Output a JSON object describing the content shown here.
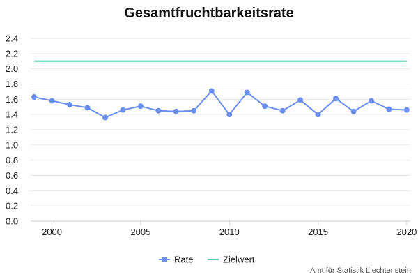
{
  "credit": "Amt für Statistik Liechtenstein",
  "chart_data": {
    "type": "line",
    "title": "Gesamtfruchtbarkeitsrate",
    "xlabel": "",
    "ylabel": "",
    "x": [
      1999,
      2000,
      2001,
      2002,
      2003,
      2004,
      2005,
      2006,
      2007,
      2008,
      2009,
      2010,
      2011,
      2012,
      2013,
      2014,
      2015,
      2016,
      2017,
      2018,
      2019,
      2020
    ],
    "series": [
      {
        "name": "Rate",
        "color": "#6b8ff0",
        "markers": true,
        "values": [
          1.63,
          1.58,
          1.53,
          1.49,
          1.36,
          1.46,
          1.51,
          1.45,
          1.44,
          1.45,
          1.71,
          1.4,
          1.69,
          1.51,
          1.45,
          1.59,
          1.4,
          1.61,
          1.44,
          1.58,
          1.47,
          1.46
        ]
      },
      {
        "name": "Zielwert",
        "color": "#4fd1ae",
        "markers": false,
        "values": [
          2.1,
          2.1,
          2.1,
          2.1,
          2.1,
          2.1,
          2.1,
          2.1,
          2.1,
          2.1,
          2.1,
          2.1,
          2.1,
          2.1,
          2.1,
          2.1,
          2.1,
          2.1,
          2.1,
          2.1,
          2.1,
          2.1
        ]
      }
    ],
    "xlim": [
      1998.8,
      2020.2
    ],
    "ylim": [
      0,
      2.4
    ],
    "x_ticks": [
      2000,
      2005,
      2010,
      2015,
      2020
    ],
    "x_tick_labels": [
      "2000",
      "2005",
      "2010",
      "2015",
      "2020"
    ],
    "y_ticks": [
      0.0,
      0.2,
      0.4,
      0.6,
      0.8,
      1.0,
      1.2,
      1.4,
      1.6,
      1.8,
      2.0,
      2.2,
      2.4
    ],
    "y_tick_labels": [
      "0.0",
      "0.2",
      "0.4",
      "0.6",
      "0.8",
      "1.0",
      "1.2",
      "1.4",
      "1.6",
      "1.8",
      "2.0",
      "2.2",
      "2.4"
    ],
    "grid": true,
    "legend_position": "bottom-center"
  }
}
